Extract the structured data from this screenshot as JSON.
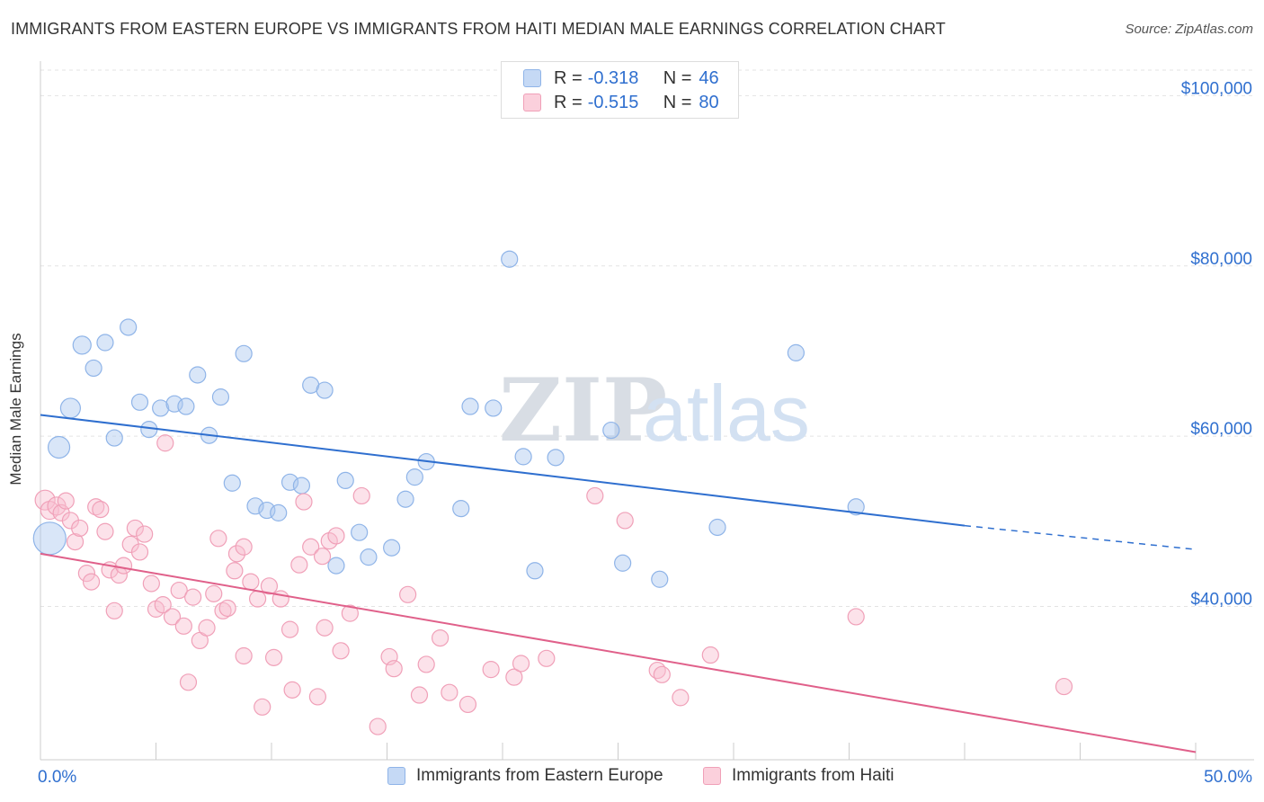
{
  "title": "IMMIGRANTS FROM EASTERN EUROPE VS IMMIGRANTS FROM HAITI MEDIAN MALE EARNINGS CORRELATION CHART",
  "source": "Source: ZipAtlas.com",
  "watermark": {
    "zip": "ZIP",
    "atlas": "atlas"
  },
  "legend": {
    "rows": [
      {
        "r_label": "R =",
        "r_value": "-0.318",
        "n_label": "N =",
        "n_value": "46",
        "color": "#8fb4e8",
        "fill": "#c5d9f5"
      },
      {
        "r_label": "R =",
        "r_value": "-0.515",
        "n_label": "N =",
        "n_value": "80",
        "color": "#f0a0b8",
        "fill": "#fbd0dc"
      }
    ]
  },
  "bottom_legend": [
    {
      "label": "Immigrants from Eastern Europe",
      "color": "#8fb4e8",
      "fill": "#c5d9f5"
    },
    {
      "label": "Immigrants from Haiti",
      "color": "#f0a0b8",
      "fill": "#fbd0dc"
    }
  ],
  "chart_data": {
    "type": "scatter",
    "title": "IMMIGRANTS FROM EASTERN EUROPE VS IMMIGRANTS FROM HAITI MEDIAN MALE EARNINGS CORRELATION CHART",
    "ylabel": "Median Male Earnings",
    "xlabel": "",
    "xlim": [
      0,
      50
    ],
    "ylim": [
      22000,
      103000
    ],
    "x_tick_labels": [
      "0.0%",
      "50.0%"
    ],
    "y_ticks": [
      {
        "value": 40000,
        "label": "$40,000"
      },
      {
        "value": 60000,
        "label": "$60,000"
      },
      {
        "value": 80000,
        "label": "$80,000"
      },
      {
        "value": 100000,
        "label": "$100,000"
      }
    ],
    "grid": true,
    "series": [
      {
        "name": "Immigrants from Eastern Europe",
        "color": "#2f6fcf",
        "point_color": "#8fb4e8",
        "trend": {
          "x": [
            0,
            40
          ],
          "y": [
            62500,
            49500
          ],
          "dashed_to": [
            50,
            46700
          ]
        },
        "points": [
          [
            0.4,
            48000,
            18
          ],
          [
            0.8,
            58700,
            12
          ],
          [
            1.3,
            63300,
            11
          ],
          [
            1.8,
            70700,
            10
          ],
          [
            2.3,
            68000,
            9
          ],
          [
            2.8,
            71000,
            9
          ],
          [
            3.2,
            59800,
            9
          ],
          [
            3.8,
            72800,
            9
          ],
          [
            4.3,
            64000,
            9
          ],
          [
            4.7,
            60800,
            9
          ],
          [
            5.2,
            63300,
            9
          ],
          [
            5.8,
            63800,
            9
          ],
          [
            6.3,
            63500,
            9
          ],
          [
            6.8,
            67200,
            9
          ],
          [
            7.3,
            60100,
            9
          ],
          [
            7.8,
            64600,
            9
          ],
          [
            8.3,
            54500,
            9
          ],
          [
            8.8,
            69700,
            9
          ],
          [
            9.3,
            51800,
            9
          ],
          [
            9.8,
            51300,
            9
          ],
          [
            10.3,
            51000,
            9
          ],
          [
            10.8,
            54600,
            9
          ],
          [
            11.3,
            54200,
            9
          ],
          [
            11.7,
            66000,
            9
          ],
          [
            12.3,
            65400,
            9
          ],
          [
            12.8,
            44800,
            9
          ],
          [
            13.2,
            54800,
            9
          ],
          [
            13.8,
            48700,
            9
          ],
          [
            14.2,
            45800,
            9
          ],
          [
            15.2,
            46900,
            9
          ],
          [
            15.8,
            52600,
            9
          ],
          [
            16.2,
            55200,
            9
          ],
          [
            16.7,
            57000,
            9
          ],
          [
            18.2,
            51500,
            9
          ],
          [
            18.6,
            63500,
            9
          ],
          [
            19.6,
            63300,
            9
          ],
          [
            20.3,
            80800,
            9
          ],
          [
            20.9,
            57600,
            9
          ],
          [
            21.4,
            44200,
            9
          ],
          [
            22.3,
            57500,
            9
          ],
          [
            24.7,
            60700,
            9
          ],
          [
            25.2,
            45100,
            9
          ],
          [
            26.8,
            43200,
            9
          ],
          [
            29.3,
            49300,
            9
          ],
          [
            32.7,
            69800,
            9
          ],
          [
            35.3,
            51700,
            9
          ]
        ]
      },
      {
        "name": "Immigrants from Haiti",
        "color": "#e0608a",
        "point_color": "#f0a0b8",
        "trend": {
          "x": [
            0,
            50
          ],
          "y": [
            46200,
            22900
          ]
        },
        "points": [
          [
            0.2,
            52500,
            11
          ],
          [
            0.4,
            51300,
            10
          ],
          [
            0.7,
            51800,
            10
          ],
          [
            0.9,
            51000,
            9
          ],
          [
            1.1,
            52400,
            9
          ],
          [
            1.3,
            50100,
            9
          ],
          [
            1.5,
            47600,
            9
          ],
          [
            1.7,
            49200,
            9
          ],
          [
            2.0,
            43900,
            9
          ],
          [
            2.2,
            42900,
            9
          ],
          [
            2.4,
            51700,
            9
          ],
          [
            2.6,
            51400,
            9
          ],
          [
            2.8,
            48800,
            9
          ],
          [
            3.0,
            44300,
            9
          ],
          [
            3.2,
            39500,
            9
          ],
          [
            3.4,
            43700,
            9
          ],
          [
            3.6,
            44800,
            9
          ],
          [
            3.9,
            47300,
            9
          ],
          [
            4.1,
            49200,
            9
          ],
          [
            4.3,
            46400,
            9
          ],
          [
            4.5,
            48500,
            9
          ],
          [
            4.8,
            42700,
            9
          ],
          [
            5.0,
            39700,
            9
          ],
          [
            5.3,
            40200,
            9
          ],
          [
            5.4,
            59200,
            9
          ],
          [
            5.7,
            38800,
            9
          ],
          [
            6.0,
            41900,
            9
          ],
          [
            6.2,
            37700,
            9
          ],
          [
            6.4,
            31100,
            9
          ],
          [
            6.6,
            41100,
            9
          ],
          [
            6.9,
            36000,
            9
          ],
          [
            7.2,
            37500,
            9
          ],
          [
            7.5,
            41500,
            9
          ],
          [
            7.7,
            48000,
            9
          ],
          [
            7.9,
            39500,
            9
          ],
          [
            8.1,
            39800,
            9
          ],
          [
            8.4,
            44200,
            9
          ],
          [
            8.5,
            46200,
            9
          ],
          [
            8.8,
            34200,
            9
          ],
          [
            8.8,
            47000,
            9
          ],
          [
            9.1,
            42900,
            9
          ],
          [
            9.4,
            40900,
            9
          ],
          [
            9.6,
            28200,
            9
          ],
          [
            9.9,
            42400,
            9
          ],
          [
            10.1,
            34000,
            9
          ],
          [
            10.4,
            40900,
            9
          ],
          [
            10.8,
            37300,
            9
          ],
          [
            10.9,
            30200,
            9
          ],
          [
            11.2,
            44900,
            9
          ],
          [
            11.4,
            52300,
            9
          ],
          [
            11.7,
            47000,
            9
          ],
          [
            12.0,
            29400,
            9
          ],
          [
            12.2,
            45900,
            9
          ],
          [
            12.3,
            37500,
            9
          ],
          [
            12.5,
            47700,
            9
          ],
          [
            12.8,
            48300,
            9
          ],
          [
            13.0,
            34800,
            9
          ],
          [
            13.4,
            39200,
            9
          ],
          [
            13.9,
            53000,
            9
          ],
          [
            14.6,
            25900,
            9
          ],
          [
            15.1,
            34100,
            9
          ],
          [
            15.3,
            32700,
            9
          ],
          [
            15.9,
            41400,
            9
          ],
          [
            16.4,
            29600,
            9
          ],
          [
            16.7,
            33200,
            9
          ],
          [
            17.3,
            36300,
            9
          ],
          [
            17.7,
            29900,
            9
          ],
          [
            18.5,
            28500,
            9
          ],
          [
            19.5,
            32600,
            9
          ],
          [
            20.5,
            31700,
            9
          ],
          [
            20.8,
            33300,
            9
          ],
          [
            21.9,
            33900,
            9
          ],
          [
            24.0,
            53000,
            9
          ],
          [
            25.3,
            50100,
            9
          ],
          [
            26.7,
            32500,
            9
          ],
          [
            27.7,
            29300,
            9
          ],
          [
            29.0,
            34300,
            9
          ],
          [
            35.3,
            38800,
            9
          ],
          [
            44.3,
            30600,
            9
          ],
          [
            26.9,
            32000,
            9
          ]
        ]
      }
    ]
  }
}
